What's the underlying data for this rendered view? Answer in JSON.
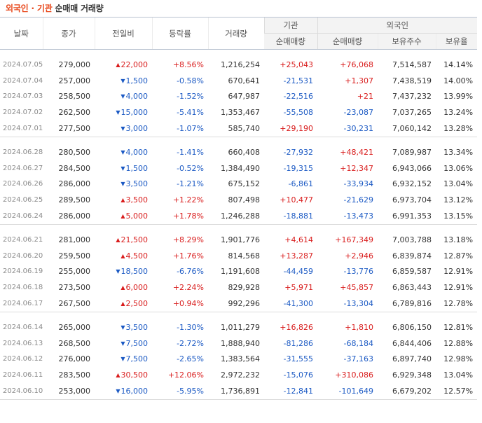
{
  "title": {
    "part1": "외국인",
    "sep": " · ",
    "part2": "기관",
    "part3": " 순매매 거래량"
  },
  "header": {
    "date": "날짜",
    "close": "종가",
    "change": "전일비",
    "rate": "등락률",
    "volume": "거래량",
    "inst_group": "기관",
    "foreign_group": "외국인",
    "inst_net": "순매매량",
    "foreign_net": "순매매량",
    "foreign_hold": "보유주수",
    "foreign_ratio": "보유율"
  },
  "groups": [
    [
      {
        "date": "2024.07.05",
        "close": "279,000",
        "change": "22,000",
        "dir": "up",
        "rate": "+8.56%",
        "volume": "1,216,254",
        "inst": "+25,043",
        "foreign": "+76,068",
        "hold": "7,514,587",
        "ratio": "14.14%"
      },
      {
        "date": "2024.07.04",
        "close": "257,000",
        "change": "1,500",
        "dir": "down",
        "rate": "-0.58%",
        "volume": "670,641",
        "inst": "-21,531",
        "foreign": "+1,307",
        "hold": "7,438,519",
        "ratio": "14.00%"
      },
      {
        "date": "2024.07.03",
        "close": "258,500",
        "change": "4,000",
        "dir": "down",
        "rate": "-1.52%",
        "volume": "647,987",
        "inst": "-22,516",
        "foreign": "+21",
        "hold": "7,437,232",
        "ratio": "13.99%"
      },
      {
        "date": "2024.07.02",
        "close": "262,500",
        "change": "15,000",
        "dir": "down",
        "rate": "-5.41%",
        "volume": "1,353,467",
        "inst": "-55,508",
        "foreign": "-23,087",
        "hold": "7,037,265",
        "ratio": "13.24%"
      },
      {
        "date": "2024.07.01",
        "close": "277,500",
        "change": "3,000",
        "dir": "down",
        "rate": "-1.07%",
        "volume": "585,740",
        "inst": "+29,190",
        "foreign": "-30,231",
        "hold": "7,060,142",
        "ratio": "13.28%"
      }
    ],
    [
      {
        "date": "2024.06.28",
        "close": "280,500",
        "change": "4,000",
        "dir": "down",
        "rate": "-1.41%",
        "volume": "660,408",
        "inst": "-27,932",
        "foreign": "+48,421",
        "hold": "7,089,987",
        "ratio": "13.34%"
      },
      {
        "date": "2024.06.27",
        "close": "284,500",
        "change": "1,500",
        "dir": "down",
        "rate": "-0.52%",
        "volume": "1,384,490",
        "inst": "-19,315",
        "foreign": "+12,347",
        "hold": "6,943,066",
        "ratio": "13.06%"
      },
      {
        "date": "2024.06.26",
        "close": "286,000",
        "change": "3,500",
        "dir": "down",
        "rate": "-1.21%",
        "volume": "675,152",
        "inst": "-6,861",
        "foreign": "-33,934",
        "hold": "6,932,152",
        "ratio": "13.04%"
      },
      {
        "date": "2024.06.25",
        "close": "289,500",
        "change": "3,500",
        "dir": "up",
        "rate": "+1.22%",
        "volume": "807,498",
        "inst": "+10,477",
        "foreign": "-21,629",
        "hold": "6,973,704",
        "ratio": "13.12%"
      },
      {
        "date": "2024.06.24",
        "close": "286,000",
        "change": "5,000",
        "dir": "up",
        "rate": "+1.78%",
        "volume": "1,246,288",
        "inst": "-18,881",
        "foreign": "-13,473",
        "hold": "6,991,353",
        "ratio": "13.15%"
      }
    ],
    [
      {
        "date": "2024.06.21",
        "close": "281,000",
        "change": "21,500",
        "dir": "up",
        "rate": "+8.29%",
        "volume": "1,901,776",
        "inst": "+4,614",
        "foreign": "+167,349",
        "hold": "7,003,788",
        "ratio": "13.18%"
      },
      {
        "date": "2024.06.20",
        "close": "259,500",
        "change": "4,500",
        "dir": "up",
        "rate": "+1.76%",
        "volume": "814,568",
        "inst": "+13,287",
        "foreign": "+2,946",
        "hold": "6,839,874",
        "ratio": "12.87%"
      },
      {
        "date": "2024.06.19",
        "close": "255,000",
        "change": "18,500",
        "dir": "down",
        "rate": "-6.76%",
        "volume": "1,191,608",
        "inst": "-44,459",
        "foreign": "-13,776",
        "hold": "6,859,587",
        "ratio": "12.91%"
      },
      {
        "date": "2024.06.18",
        "close": "273,500",
        "change": "6,000",
        "dir": "up",
        "rate": "+2.24%",
        "volume": "829,928",
        "inst": "+5,971",
        "foreign": "+45,857",
        "hold": "6,863,443",
        "ratio": "12.91%"
      },
      {
        "date": "2024.06.17",
        "close": "267,500",
        "change": "2,500",
        "dir": "up",
        "rate": "+0.94%",
        "volume": "992,296",
        "inst": "-41,300",
        "foreign": "-13,304",
        "hold": "6,789,816",
        "ratio": "12.78%"
      }
    ],
    [
      {
        "date": "2024.06.14",
        "close": "265,000",
        "change": "3,500",
        "dir": "down",
        "rate": "-1.30%",
        "volume": "1,011,279",
        "inst": "+16,826",
        "foreign": "+1,810",
        "hold": "6,806,150",
        "ratio": "12.81%"
      },
      {
        "date": "2024.06.13",
        "close": "268,500",
        "change": "7,500",
        "dir": "down",
        "rate": "-2.72%",
        "volume": "1,888,940",
        "inst": "-81,286",
        "foreign": "-68,184",
        "hold": "6,844,406",
        "ratio": "12.88%"
      },
      {
        "date": "2024.06.12",
        "close": "276,000",
        "change": "7,500",
        "dir": "down",
        "rate": "-2.65%",
        "volume": "1,383,564",
        "inst": "-31,555",
        "foreign": "-37,163",
        "hold": "6,897,740",
        "ratio": "12.98%"
      },
      {
        "date": "2024.06.11",
        "close": "283,500",
        "change": "30,500",
        "dir": "up",
        "rate": "+12.06%",
        "volume": "2,972,232",
        "inst": "-15,076",
        "foreign": "+310,086",
        "hold": "6,929,348",
        "ratio": "13.04%"
      },
      {
        "date": "2024.06.10",
        "close": "253,000",
        "change": "16,000",
        "dir": "down",
        "rate": "-5.95%",
        "volume": "1,736,891",
        "inst": "-12,841",
        "foreign": "-101,649",
        "hold": "6,679,202",
        "ratio": "12.57%"
      }
    ]
  ],
  "colors": {
    "up": "#d91d1d",
    "down": "#1c5ac4",
    "accent": "#e8491d"
  }
}
